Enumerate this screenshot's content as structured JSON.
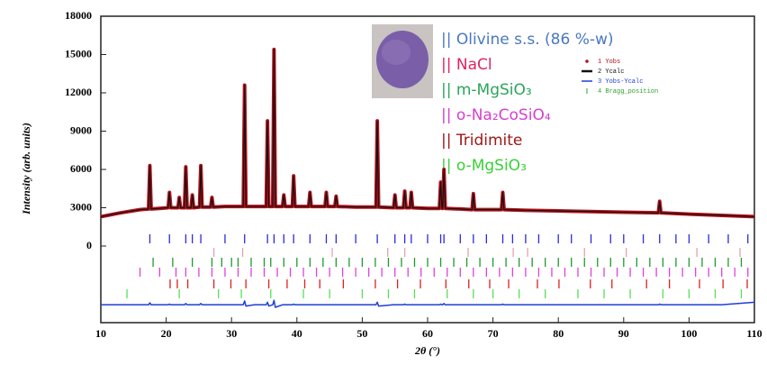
{
  "chart_data": {
    "type": "line",
    "ylabel": "Intensity (arb. units)",
    "xlabel": "2θ (°)",
    "xlim": [
      10,
      110
    ],
    "xticks": [
      10,
      20,
      30,
      40,
      50,
      60,
      70,
      80,
      90,
      100,
      110
    ],
    "ylim": [
      -6000,
      18000
    ],
    "yticks": [
      0,
      3000,
      6000,
      9000,
      12000,
      15000,
      18000
    ],
    "x": [
      10,
      13,
      16,
      17.3,
      17.5,
      17.7,
      19,
      20.3,
      20.5,
      20.7,
      21.8,
      22,
      22.2,
      22.8,
      23,
      23.2,
      23.8,
      24,
      24.2,
      25.1,
      25.3,
      25.5,
      26.8,
      27,
      27.2,
      29,
      31.8,
      32,
      32.2,
      33.5,
      35.3,
      35.5,
      35.7,
      36.3,
      36.5,
      36.7,
      37.8,
      38,
      38.2,
      39.3,
      39.5,
      39.7,
      41.8,
      42,
      42.2,
      44.3,
      44.5,
      44.7,
      45.8,
      46,
      46.2,
      49,
      52.1,
      52.3,
      52.5,
      54.8,
      55,
      55.2,
      56.3,
      56.5,
      56.7,
      57.3,
      57.5,
      57.7,
      60,
      61.8,
      62,
      62.2,
      62.3,
      62.5,
      62.7,
      65,
      66.8,
      67,
      67.2,
      69,
      71.3,
      71.5,
      71.7,
      75,
      80,
      85,
      90,
      95.3,
      95.5,
      95.7,
      100,
      105,
      110
    ],
    "series": [
      {
        "name": "1  Yobs",
        "color": "#b5121b",
        "width": 4,
        "values": [
          2300,
          2600,
          2850,
          2900,
          6300,
          2900,
          2950,
          3000,
          4200,
          3000,
          3000,
          3800,
          3000,
          3000,
          6200,
          3000,
          3000,
          4000,
          3000,
          3050,
          6300,
          3050,
          3050,
          3800,
          3050,
          3100,
          3100,
          12600,
          3100,
          3100,
          3100,
          9800,
          3100,
          3100,
          15400,
          3100,
          3100,
          4000,
          3100,
          3100,
          5500,
          3100,
          3100,
          4200,
          3100,
          3100,
          4200,
          3100,
          3100,
          3900,
          3100,
          3050,
          3050,
          9800,
          3050,
          3000,
          4000,
          3000,
          3000,
          4300,
          3000,
          3000,
          4200,
          3000,
          2950,
          2950,
          5000,
          2950,
          2950,
          6000,
          2950,
          2900,
          2850,
          4100,
          2850,
          2850,
          2850,
          4200,
          2850,
          2800,
          2750,
          2700,
          2650,
          2600,
          3500,
          2600,
          2500,
          2400,
          2300
        ]
      },
      {
        "name": "2  Ycalc",
        "color": "#111111",
        "width": 1.2,
        "values": [
          2300,
          2600,
          2850,
          2900,
          6300,
          2900,
          2950,
          3000,
          4200,
          3000,
          3000,
          3800,
          3000,
          3000,
          6200,
          3000,
          3000,
          4000,
          3000,
          3050,
          6300,
          3050,
          3050,
          3800,
          3050,
          3100,
          3100,
          12600,
          3100,
          3100,
          3100,
          9800,
          3100,
          3100,
          15400,
          3100,
          3100,
          4000,
          3100,
          3100,
          5500,
          3100,
          3100,
          4200,
          3100,
          3100,
          4200,
          3100,
          3100,
          3900,
          3100,
          3050,
          3050,
          9800,
          3050,
          3000,
          4000,
          3000,
          3000,
          4300,
          3000,
          3000,
          4200,
          3000,
          2950,
          2950,
          5000,
          2950,
          2950,
          6000,
          2950,
          2900,
          2850,
          4100,
          2850,
          2850,
          2850,
          4200,
          2850,
          2800,
          2750,
          2700,
          2650,
          2600,
          3500,
          2600,
          2500,
          2400,
          2300
        ]
      },
      {
        "name": "3  Yobs-Ycalc",
        "color": "#1f3fd6",
        "width": 1.5,
        "values": [
          -4600,
          -4600,
          -4600,
          -4600,
          -4450,
          -4600,
          -4600,
          -4600,
          -4550,
          -4600,
          -4600,
          -4600,
          -4600,
          -4600,
          -4500,
          -4600,
          -4600,
          -4600,
          -4600,
          -4600,
          -4500,
          -4600,
          -4600,
          -4600,
          -4600,
          -4600,
          -4600,
          -4300,
          -4700,
          -4600,
          -4600,
          -4400,
          -4700,
          -4600,
          -4250,
          -4800,
          -4600,
          -4600,
          -4600,
          -4600,
          -4550,
          -4600,
          -4600,
          -4600,
          -4600,
          -4600,
          -4600,
          -4600,
          -4600,
          -4600,
          -4600,
          -4600,
          -4600,
          -4400,
          -4700,
          -4600,
          -4600,
          -4600,
          -4600,
          -4550,
          -4600,
          -4600,
          -4600,
          -4600,
          -4600,
          -4600,
          -4550,
          -4600,
          -4600,
          -4500,
          -4600,
          -4600,
          -4600,
          -4600,
          -4600,
          -4600,
          -4600,
          -4550,
          -4600,
          -4600,
          -4600,
          -4600,
          -4600,
          -4600,
          -4550,
          -4600,
          -4600,
          -4600,
          -4400
        ]
      }
    ],
    "bragg_legend": {
      "name": "4  Bragg_position",
      "color": "#2e9e2e"
    },
    "phases": [
      {
        "name": "|| Olivine s.s. (86 %-w)",
        "color": "#4a78c0",
        "tick_color": "#2a2adc",
        "positions": [
          17.5,
          20.5,
          23,
          24,
          25.3,
          29,
          32,
          35.5,
          36.5,
          38,
          39.5,
          42,
          44.5,
          46,
          49,
          52.3,
          55,
          56.5,
          57.5,
          60,
          62,
          62.5,
          65,
          67,
          69,
          71.5,
          73,
          75,
          77,
          80,
          82,
          85,
          88,
          90,
          93,
          95.5,
          98,
          100,
          103,
          106,
          109
        ]
      },
      {
        "name": "|| NaCl",
        "color": "#e0245e",
        "tick_color": "#e8a0b0",
        "positions": [
          27.3,
          31.7,
          45.4,
          53.9,
          56.5,
          66.2,
          73.1,
          75.3,
          84.0,
          90.4,
          101.2,
          107.8
        ]
      },
      {
        "name": "|| m-MgSiO₃",
        "color": "#2aa55a",
        "tick_color": "#1e9a2e",
        "positions": [
          18,
          21,
          24,
          27,
          28.5,
          30,
          31,
          33,
          35,
          36,
          38,
          40,
          42,
          44,
          46,
          48,
          50,
          52,
          54,
          56,
          58,
          60,
          62,
          64,
          66,
          68,
          70,
          72,
          74,
          76,
          78,
          80,
          82,
          84,
          86,
          88,
          90,
          92,
          94,
          96,
          98,
          100,
          102,
          104,
          106,
          108
        ]
      },
      {
        "name": "|| o-Na₂CoSiO₄",
        "color": "#d63fd0",
        "tick_color": "#e040e0",
        "positions": [
          16,
          19,
          21.5,
          23,
          25,
          27,
          29,
          31,
          33,
          35,
          37,
          39,
          41,
          43,
          45,
          47,
          49,
          51,
          53,
          55,
          57,
          59,
          61,
          63,
          65,
          67,
          69,
          71,
          73,
          75,
          77,
          79,
          81,
          83,
          85,
          87,
          89,
          91,
          93,
          95,
          97,
          99,
          101,
          103,
          105,
          107,
          109
        ]
      },
      {
        "name": "|| Tridimite",
        "color": "#a01818",
        "tick_color": "#e02020",
        "positions": [
          20.6,
          21.7,
          23.3,
          27.3,
          29.9,
          32.2,
          35.7,
          38.5,
          41.2,
          43.5,
          47.1,
          52.0,
          55.4,
          58.9,
          62.8,
          66.3,
          69.5,
          72.4,
          76.8,
          80.1,
          84.9,
          88.2,
          93.5,
          97.0,
          101.6,
          105.2,
          108.9
        ]
      },
      {
        "name": "|| o-MgSiO₃",
        "color": "#39d039",
        "tick_color": "#55e055",
        "positions": [
          14,
          22,
          28,
          31.5,
          36,
          41,
          45,
          50,
          54,
          58,
          63,
          67,
          70,
          74,
          78,
          83,
          87,
          91,
          96,
          100,
          104,
          108
        ]
      }
    ]
  }
}
